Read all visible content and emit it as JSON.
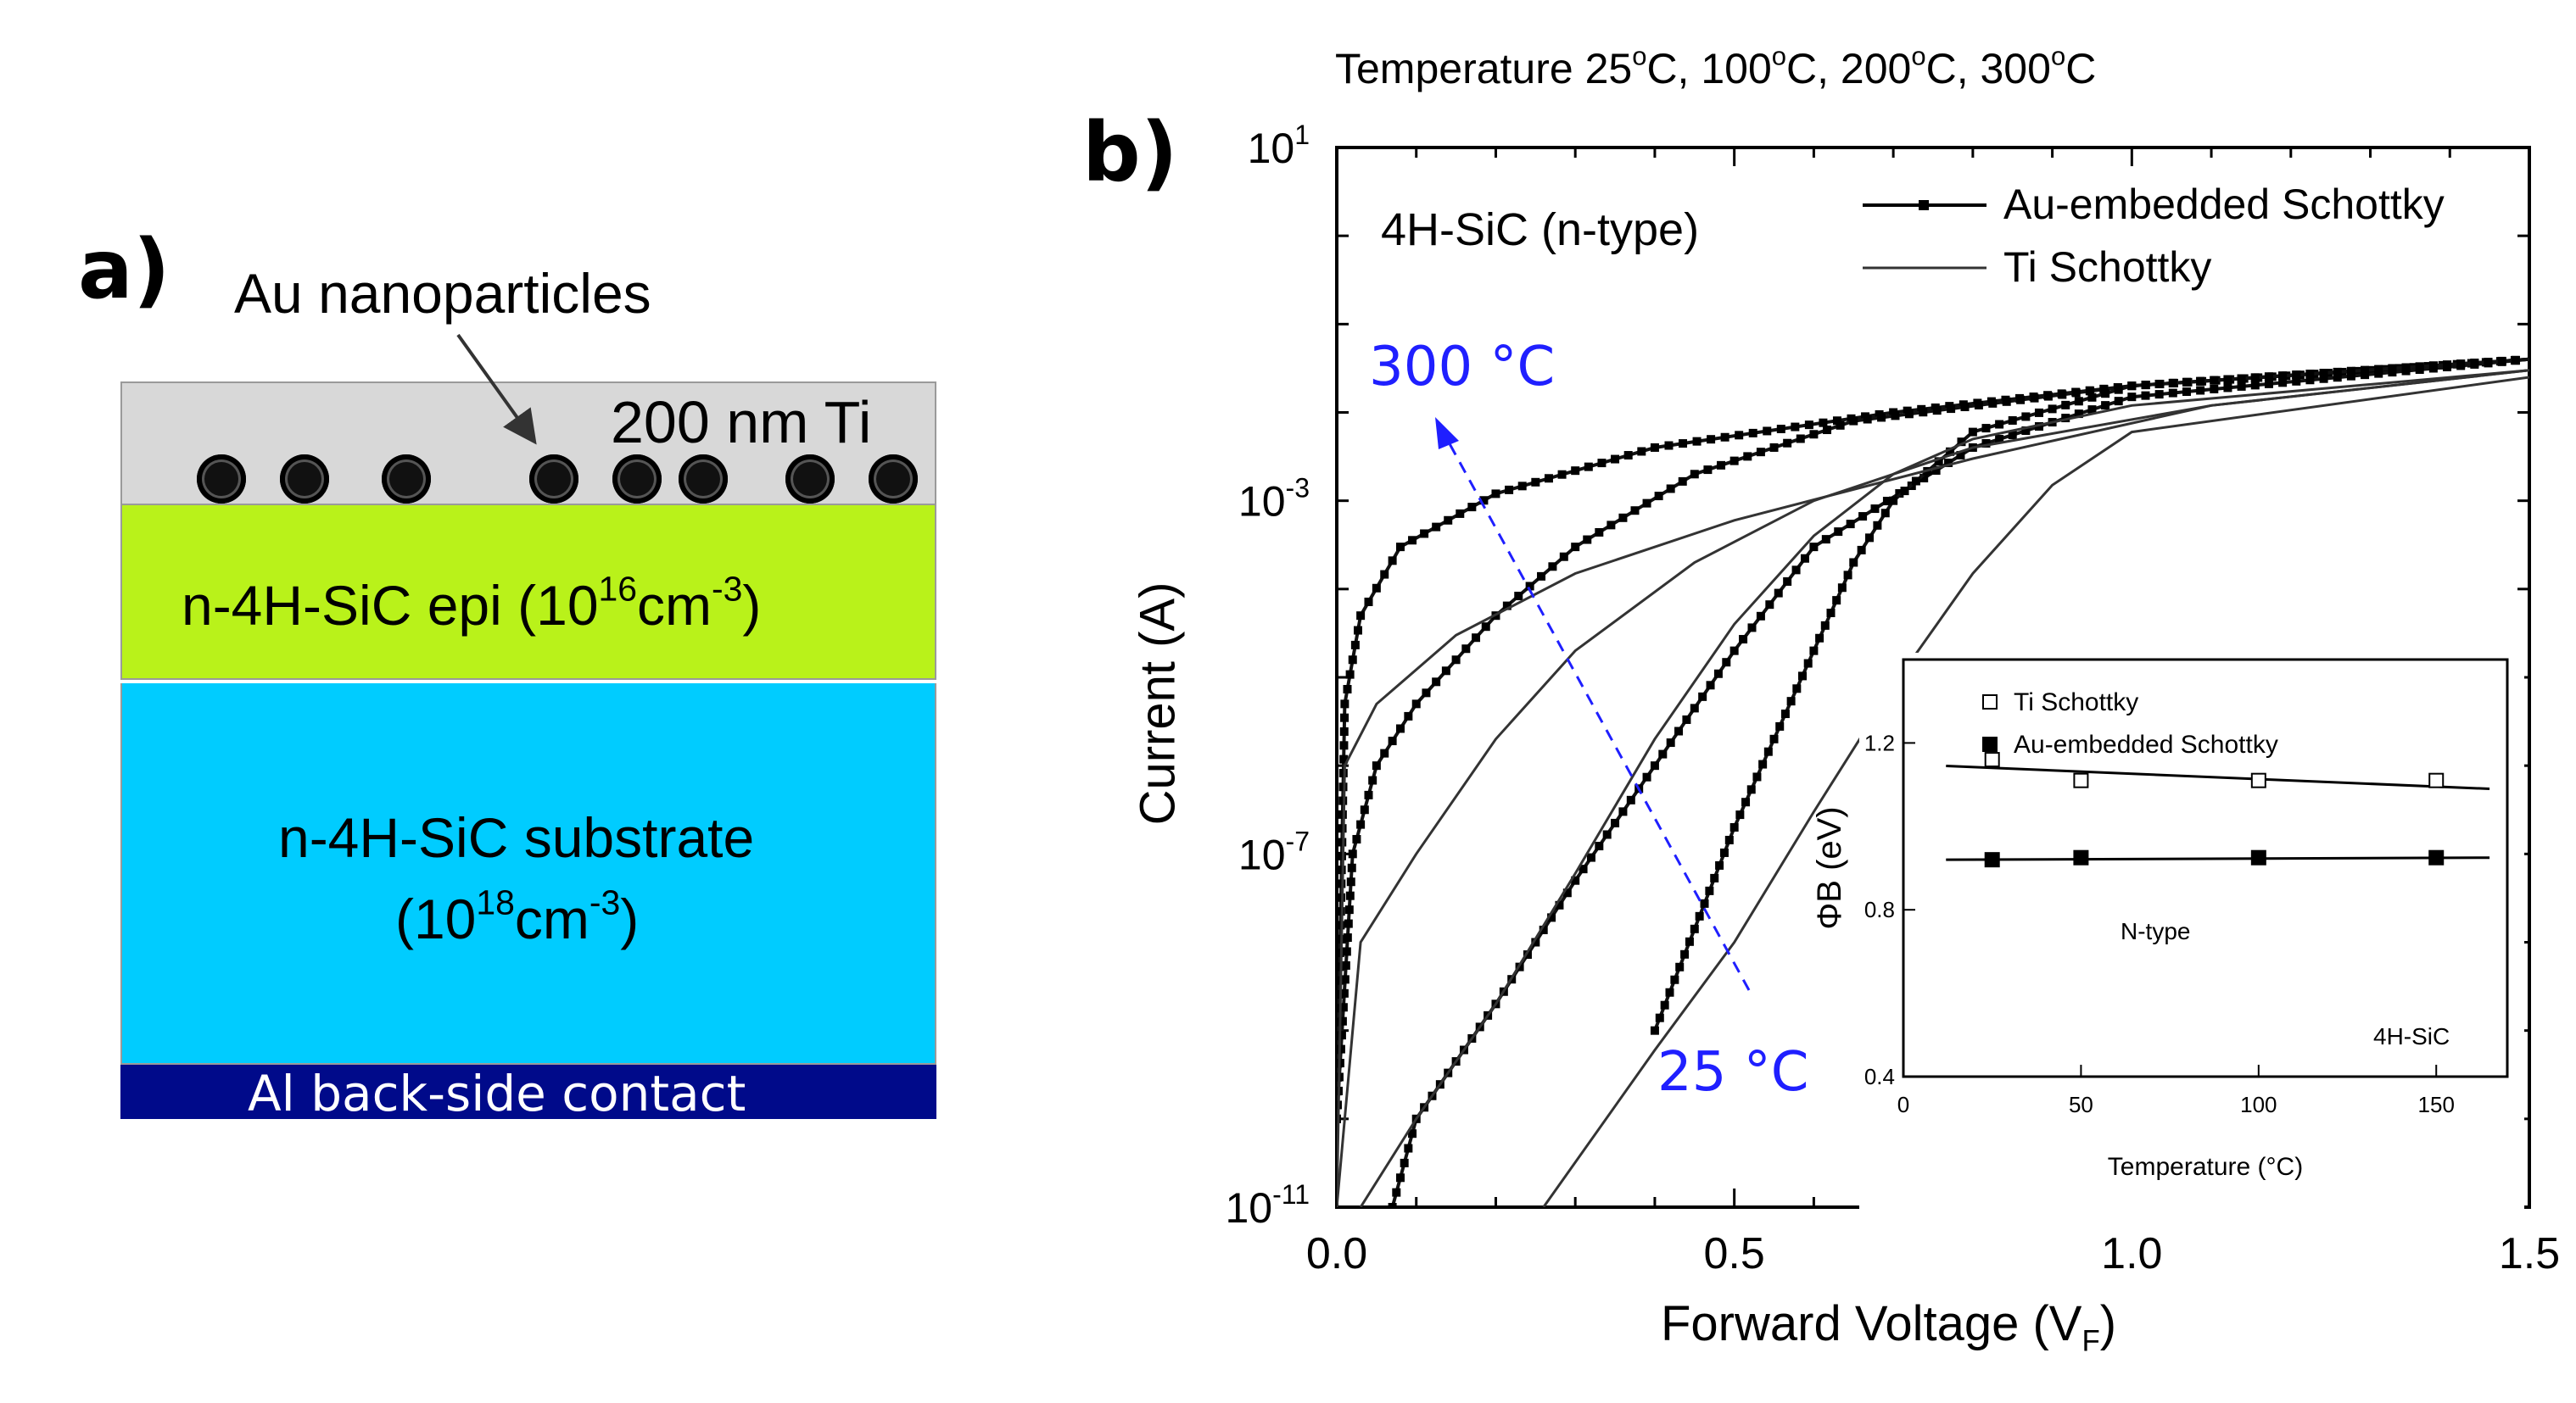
{
  "panel_a": {
    "label": "a)",
    "au_label": "Au nanoparticles",
    "ti_label": "200 nm Ti",
    "epi_label": {
      "prefix": "n-4H-SiC epi (10",
      "exp1": "16",
      "mid": "cm",
      "exp2": "-3",
      "suffix": ")"
    },
    "substrate_label": {
      "line1": "n-4H-SiC substrate",
      "prefix": "(10",
      "exp1": "18",
      "mid": "cm",
      "exp2": "-3",
      "suffix": ")"
    },
    "al_label": "Al back-side contact",
    "colors": {
      "ti": "#d8d8d8",
      "epi": "#b9f21a",
      "substrate": "#00ccff",
      "al": "#000a8a"
    }
  },
  "panel_b": {
    "label": "b)",
    "top_title": {
      "t1": "Temperature 25",
      "o": "o",
      "t2": "C, 100",
      "t3": "C, 200",
      "t4": "C, 300",
      "t5": "C"
    },
    "material": "4H-SiC (n-type)",
    "legend": [
      "Au-embedded Schottky",
      "Ti Schottky"
    ],
    "hot_label": "300 °C",
    "cold_label": "25 °C",
    "ylabel": "Current (A)",
    "xlabel": {
      "main": "Forward Voltage (V",
      "sub": "F",
      "close": ")"
    },
    "y_ticks": [
      {
        "base": "10",
        "exp": "1"
      },
      {
        "base": "10",
        "exp": "-3"
      },
      {
        "base": "10",
        "exp": "-7"
      },
      {
        "base": "10",
        "exp": "-11"
      }
    ],
    "x_ticks": [
      "0.0",
      "0.5",
      "1.0",
      "1.5"
    ],
    "arrow_color": "#1f1fff"
  },
  "chart_data": [
    {
      "type": "line",
      "yscale": "log",
      "xlim": [
        0,
        1.5
      ],
      "ylim": [
        1e-11,
        10
      ],
      "title": "",
      "xlabel": "Forward Voltage (VF)",
      "ylabel": "Current (A)",
      "legend_position": "top-right",
      "series": [
        {
          "name": "Au-embedded Schottky",
          "temperature": "300",
          "x": [
            0,
            0.01,
            0.03,
            0.08,
            0.2,
            0.4,
            0.7,
            1.0,
            1.3,
            1.5
          ],
          "y": [
            1e-10,
            5e-06,
            5e-05,
            0.0003,
            0.0012,
            0.004,
            0.01,
            0.02,
            0.03,
            0.04
          ]
        },
        {
          "name": "Au-embedded Schottky",
          "temperature": "200",
          "x": [
            0,
            0.02,
            0.05,
            0.1,
            0.2,
            0.3,
            0.45,
            0.65,
            1.0,
            1.5
          ],
          "y": [
            1e-10,
            1e-07,
            1e-06,
            5e-06,
            5e-05,
            0.0003,
            0.002,
            0.008,
            0.02,
            0.04
          ]
        },
        {
          "name": "Au-embedded Schottky",
          "temperature": "100",
          "x": [
            0.07,
            0.1,
            0.2,
            0.3,
            0.4,
            0.5,
            0.6,
            0.8,
            1.0,
            1.5
          ],
          "y": [
            1e-11,
            1e-10,
            2e-09,
            5e-08,
            1e-06,
            2e-05,
            0.0003,
            0.004,
            0.015,
            0.04
          ]
        },
        {
          "name": "Au-embedded Schottky",
          "temperature": "25",
          "x": [
            0.4,
            0.5,
            0.55,
            0.6,
            0.65,
            0.7,
            0.8,
            1.0,
            1.5
          ],
          "y": [
            1e-09,
            2e-07,
            2e-06,
            2e-05,
            0.0002,
            0.001,
            0.006,
            0.02,
            0.04
          ]
        },
        {
          "name": "Ti Schottky",
          "temperature": "300",
          "x": [
            0,
            0.01,
            0.05,
            0.15,
            0.3,
            0.5,
            0.8,
            1.1,
            1.5
          ],
          "y": [
            1e-11,
            1e-06,
            5e-06,
            3e-05,
            0.00015,
            0.0006,
            0.003,
            0.012,
            0.03
          ]
        },
        {
          "name": "Ti Schottky",
          "temperature": "200",
          "x": [
            0,
            0.03,
            0.1,
            0.2,
            0.3,
            0.45,
            0.6,
            0.8,
            1.1,
            1.5
          ],
          "y": [
            1e-11,
            1e-08,
            1e-07,
            2e-06,
            2e-05,
            0.0002,
            0.001,
            0.004,
            0.012,
            0.03
          ]
        },
        {
          "name": "Ti Schottky",
          "temperature": "100",
          "x": [
            0.03,
            0.1,
            0.2,
            0.3,
            0.4,
            0.5,
            0.6,
            0.7,
            0.8,
            1.0,
            1.5
          ],
          "y": [
            1e-11,
            1e-10,
            2e-09,
            6e-08,
            2e-06,
            4e-05,
            0.0004,
            0.002,
            0.005,
            0.012,
            0.03
          ]
        },
        {
          "name": "Ti Schottky",
          "temperature": "25",
          "x": [
            0.26,
            0.4,
            0.5,
            0.6,
            0.7,
            0.8,
            0.9,
            1.0,
            1.5
          ],
          "y": [
            1e-11,
            6e-10,
            1e-08,
            3e-07,
            8e-06,
            0.00015,
            0.0015,
            0.006,
            0.025
          ]
        }
      ]
    },
    {
      "type": "scatter",
      "title": "",
      "xlabel": "Temperature (°C)",
      "ylabel": "ΦB (eV)",
      "xlim": [
        0,
        170
      ],
      "ylim": [
        0.4,
        1.4
      ],
      "x_ticks": [
        "0",
        "50",
        "100",
        "150"
      ],
      "y_ticks": [
        "0.4",
        "0.8",
        "1.2"
      ],
      "annotations": [
        "N-type",
        "4H-SiC"
      ],
      "series": [
        {
          "name": "Ti Schottky",
          "marker": "open-square",
          "x": [
            25,
            50,
            100,
            150
          ],
          "y": [
            1.16,
            1.11,
            1.11,
            1.11
          ]
        },
        {
          "name": "Au-embedded Schottky",
          "marker": "filled-square",
          "x": [
            25,
            50,
            100,
            150
          ],
          "y": [
            0.92,
            0.925,
            0.925,
            0.925
          ]
        }
      ],
      "fit_lines": [
        {
          "series": "Ti Schottky",
          "x": [
            12,
            165
          ],
          "y": [
            1.145,
            1.09
          ]
        },
        {
          "series": "Au-embedded Schottky",
          "x": [
            12,
            165
          ],
          "y": [
            0.92,
            0.925
          ]
        }
      ]
    }
  ]
}
